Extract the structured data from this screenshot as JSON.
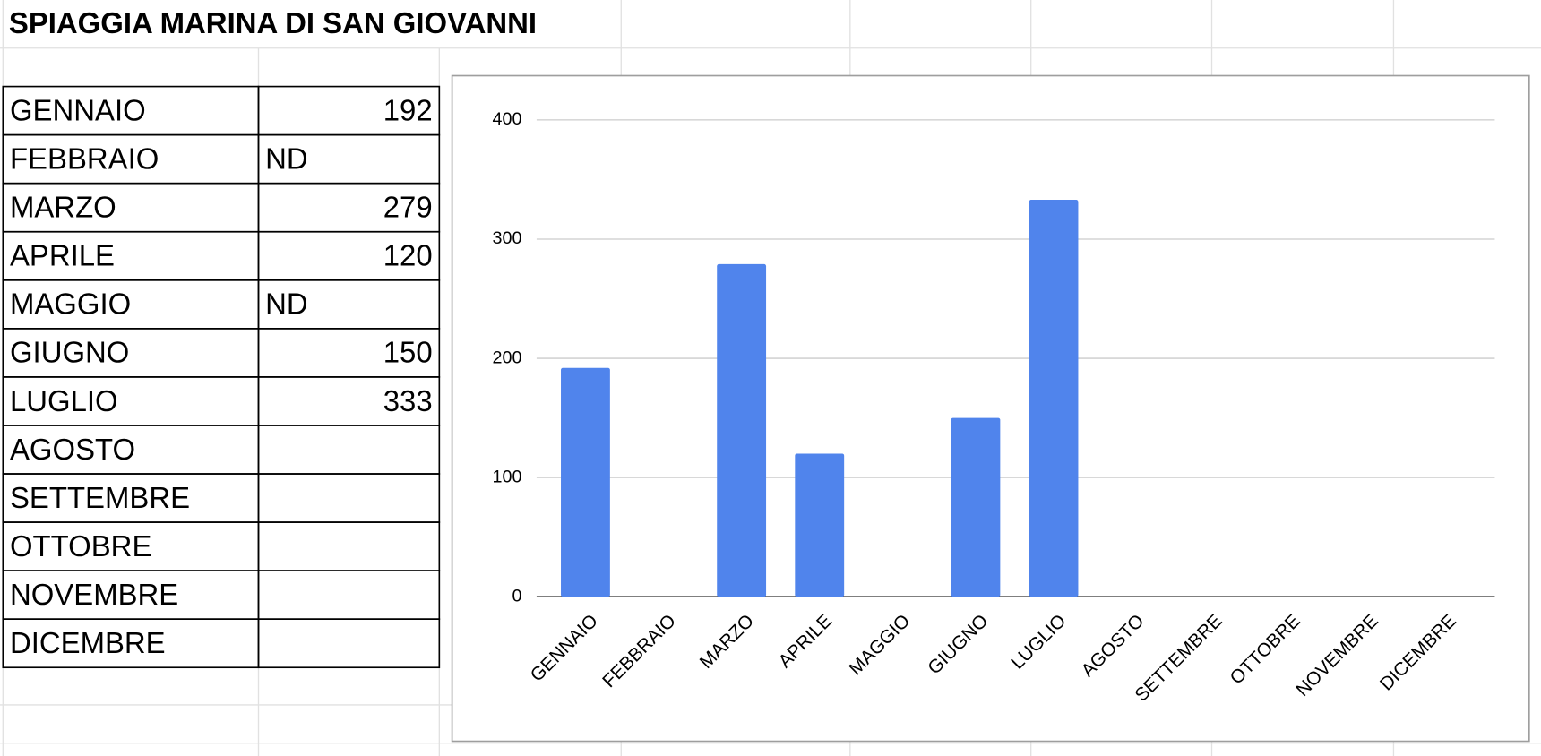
{
  "title": "SPIAGGIA MARINA DI SAN GIOVANNI",
  "table": {
    "rows": [
      [
        "GENNAIO",
        "192"
      ],
      [
        "FEBBRAIO",
        "ND"
      ],
      [
        "MARZO",
        "279"
      ],
      [
        "APRILE",
        "120"
      ],
      [
        "MAGGIO",
        "ND"
      ],
      [
        "GIUGNO",
        "150"
      ],
      [
        "LUGLIO",
        "333"
      ],
      [
        "AGOSTO"
      ],
      [
        "SETTEMBRE"
      ],
      [
        "OTTOBRE"
      ],
      [
        "NOVEMBRE"
      ],
      [
        "DICEMBRE"
      ]
    ]
  },
  "chart_data": {
    "type": "bar",
    "categories": [
      "GENNAIO",
      "FEBBRAIO",
      "MARZO",
      "APRILE",
      "MAGGIO",
      "GIUGNO",
      "LUGLIO",
      "AGOSTO",
      "SETTEMBRE",
      "OTTOBRE",
      "NOVEMBRE",
      "DICEMBRE"
    ],
    "values": [
      192,
      null,
      279,
      120,
      null,
      150,
      333,
      null,
      null,
      null,
      null,
      null
    ],
    "color": "#5084ec",
    "ylim": [
      0,
      400
    ],
    "yticks": [
      0,
      100,
      200,
      300,
      400
    ],
    "grid": true
  }
}
